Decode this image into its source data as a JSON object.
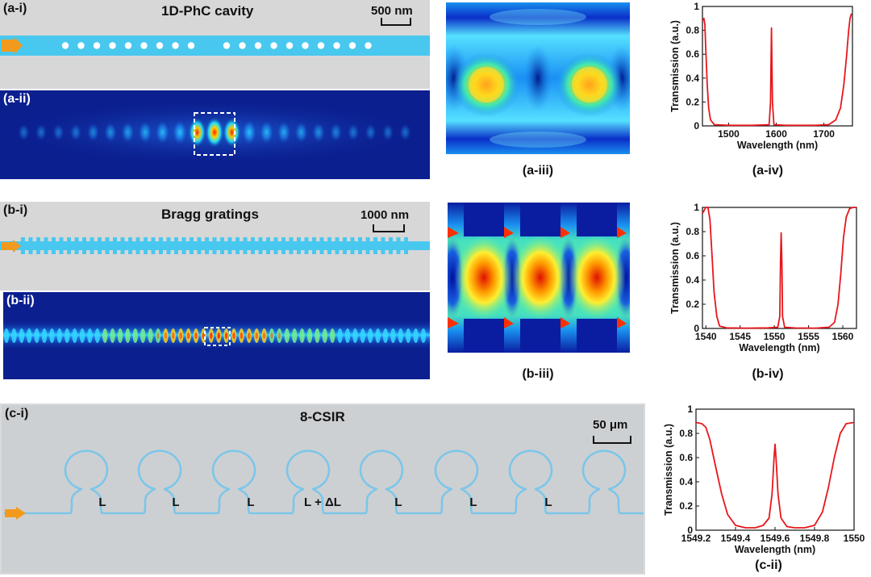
{
  "row_a": {
    "panel_i": {
      "label": "(a-i)",
      "title": "1D-PhC cavity",
      "scale": "500 nm"
    },
    "panel_ii": {
      "label": "(a-ii)"
    },
    "caption_iii": "(a-iii)",
    "caption_iv": "(a-iv)"
  },
  "row_b": {
    "panel_i": {
      "label": "(b-i)",
      "title": "Bragg gratings",
      "scale": "1000 nm"
    },
    "panel_ii": {
      "label": "(b-ii)"
    },
    "caption_iii": "(b-iii)",
    "caption_iv": "(b-iv)"
  },
  "row_c": {
    "panel_i": {
      "label": "(c-i)",
      "title": "8-CSIR",
      "scale": "50 μm",
      "segment_labels": [
        "L",
        "L",
        "L",
        "L + ΔL",
        "L",
        "L",
        "L"
      ]
    },
    "caption_ii": "(c-ii)"
  },
  "colors": {
    "waveguide": "#49c8ef",
    "spectrum": "#e8161b",
    "background_gray": "#d7d7d7",
    "field_dark": "#0b1f8f"
  },
  "chart_data": [
    {
      "id": "a-iv",
      "type": "line",
      "xlabel": "Wavelength (nm)",
      "ylabel": "Transmission (a.u.)",
      "xlim": [
        1445,
        1760
      ],
      "ylim": [
        0,
        1
      ],
      "xticks": [
        1500,
        1600,
        1700
      ],
      "yticks": [
        0,
        0.2,
        0.4,
        0.6,
        0.8,
        1
      ],
      "ytick_labels": [
        "0",
        "0.2",
        "0.4",
        "0.6",
        "0.8",
        "1"
      ],
      "series": [
        {
          "x": [
            1445,
            1448,
            1450,
            1452,
            1455,
            1458,
            1462,
            1470,
            1500,
            1550,
            1585,
            1588,
            1590,
            1592,
            1595,
            1620,
            1680,
            1710,
            1725,
            1735,
            1742,
            1748,
            1752,
            1755,
            1758
          ],
          "y": [
            0.88,
            0.9,
            0.85,
            0.65,
            0.35,
            0.15,
            0.05,
            0.01,
            0.005,
            0.005,
            0.01,
            0.2,
            0.82,
            0.2,
            0.01,
            0.005,
            0.005,
            0.01,
            0.05,
            0.15,
            0.35,
            0.6,
            0.8,
            0.9,
            0.94
          ]
        }
      ]
    },
    {
      "id": "b-iv",
      "type": "line",
      "xlabel": "Wavelength (nm)",
      "ylabel": "Transmission (a.u.)",
      "xlim": [
        1539.5,
        1562
      ],
      "ylim": [
        0,
        1
      ],
      "xticks": [
        1540,
        1545,
        1550,
        1555,
        1560
      ],
      "yticks": [
        0,
        0.2,
        0.4,
        0.6,
        0.8,
        1
      ],
      "ytick_labels": [
        "0",
        "0.2",
        "0.4",
        "0.6",
        "0.8",
        "1"
      ],
      "series": [
        {
          "x": [
            1539.5,
            1540,
            1540.3,
            1540.6,
            1540.9,
            1541.2,
            1541.6,
            1542,
            1543,
            1546,
            1549,
            1550.5,
            1550.8,
            1550.9,
            1551,
            1551.1,
            1551.2,
            1551.5,
            1553,
            1556,
            1558,
            1558.8,
            1559.3,
            1559.7,
            1560.1,
            1560.5,
            1561,
            1561.5,
            1562
          ],
          "y": [
            0.95,
            1,
            1,
            0.9,
            0.6,
            0.3,
            0.1,
            0.02,
            0.005,
            0.003,
            0.005,
            0.01,
            0.1,
            0.55,
            0.79,
            0.55,
            0.1,
            0.01,
            0.004,
            0.003,
            0.01,
            0.05,
            0.2,
            0.45,
            0.75,
            0.92,
            0.99,
            1,
            1
          ]
        }
      ]
    },
    {
      "id": "c-ii",
      "type": "line",
      "xlabel": "Wavelength (nm)",
      "ylabel": "Transmission (a.u.)",
      "xlim": [
        1549.2,
        1550
      ],
      "ylim": [
        0,
        1
      ],
      "xticks": [
        1549.2,
        1549.4,
        1549.6,
        1549.8,
        1550
      ],
      "xtick_labels": [
        "1549.2",
        "1549.4",
        "1549.6",
        "1549.8",
        "1550"
      ],
      "yticks": [
        0,
        0.2,
        0.4,
        0.6,
        0.8,
        1
      ],
      "ytick_labels": [
        "0",
        "0.2",
        "0.4",
        "0.6",
        "0.8",
        "1"
      ],
      "series": [
        {
          "x": [
            1549.2,
            1549.23,
            1549.25,
            1549.27,
            1549.3,
            1549.33,
            1549.36,
            1549.4,
            1549.45,
            1549.5,
            1549.54,
            1549.57,
            1549.585,
            1549.595,
            1549.6,
            1549.605,
            1549.615,
            1549.63,
            1549.66,
            1549.7,
            1549.75,
            1549.8,
            1549.84,
            1549.87,
            1549.9,
            1549.93,
            1549.96,
            1550
          ],
          "y": [
            0.89,
            0.88,
            0.85,
            0.75,
            0.52,
            0.3,
            0.13,
            0.04,
            0.02,
            0.02,
            0.04,
            0.1,
            0.3,
            0.6,
            0.71,
            0.6,
            0.3,
            0.1,
            0.03,
            0.02,
            0.02,
            0.04,
            0.15,
            0.35,
            0.6,
            0.8,
            0.88,
            0.89
          ]
        }
      ]
    }
  ]
}
